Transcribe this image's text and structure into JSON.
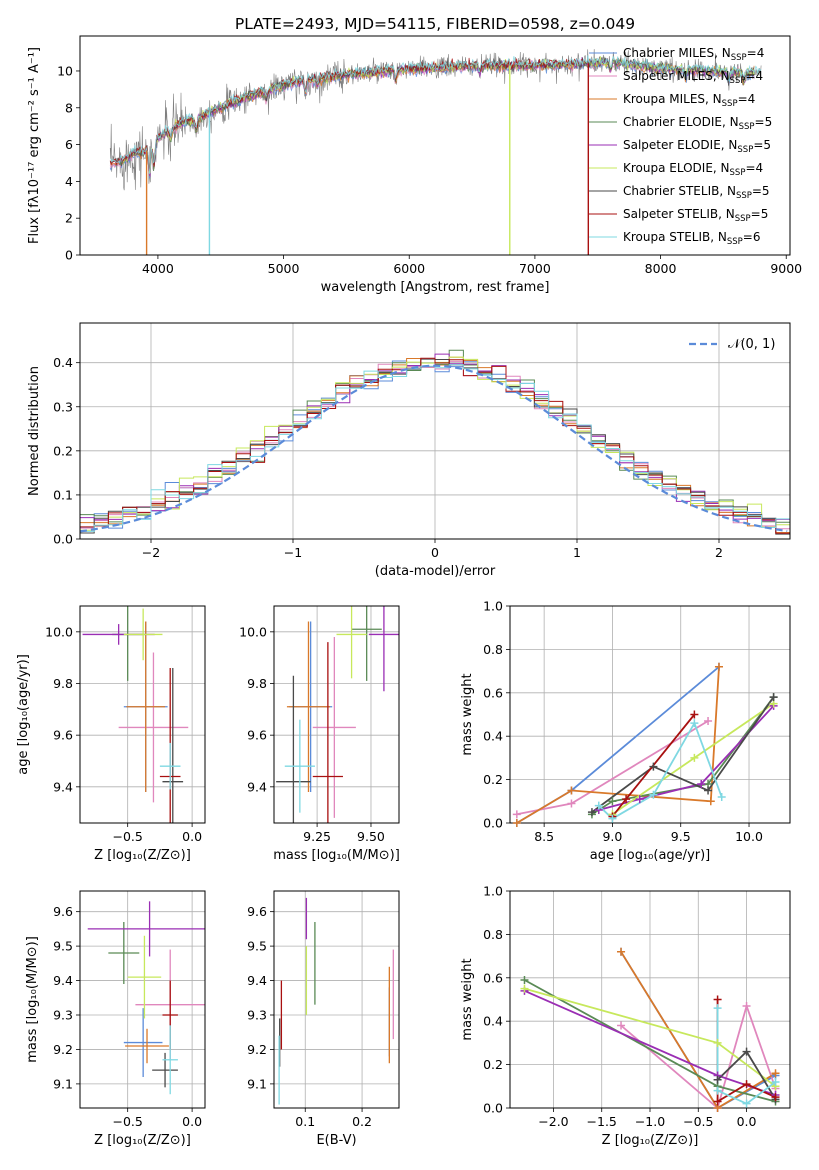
{
  "figure": {
    "title": "PLATE=2493, MJD=54115, FIBERID=0598, z=0.049"
  },
  "colors": [
    "#5b8bd9",
    "#e087bd",
    "#d9792a",
    "#5a8a55",
    "#9a2eb4",
    "#c7e85c",
    "#4a4a4a",
    "#a81010",
    "#7fd8e2"
  ],
  "chart_data": [
    {
      "id": "spectrum",
      "type": "line",
      "xlabel": "wavelength [Angstrom, rest frame]",
      "ylabel": "Flux [fλ10⁻¹⁷ erg cm⁻² s⁻¹ A⁻¹]",
      "xlim": [
        3380,
        9030
      ],
      "ylim": [
        0,
        11.9
      ],
      "xticks": [
        4000,
        5000,
        6000,
        7000,
        8000,
        9000
      ],
      "yticks": [
        0,
        2,
        4,
        6,
        8,
        10
      ],
      "legend": [
        "Chabrier MILES, N_SSP=4",
        "Salpeter MILES, N_SSP=4",
        "Kroupa MILES, N_SSP=4",
        "Chabrier ELODIE, N_SSP=5",
        "Salpeter ELODIE, N_SSP=5",
        "Kroupa ELODIE, N_SSP=4",
        "Chabrier STELIB, N_SSP=5",
        "Salpeter STELIB, N_SSP=5",
        "Kroupa STELIB, N_SSP=6"
      ],
      "legend_placement": "right",
      "data_continuum": [
        [
          3620,
          5.0
        ],
        [
          3700,
          5.0
        ],
        [
          3800,
          5.5
        ],
        [
          3900,
          5.6
        ],
        [
          4000,
          6.4
        ],
        [
          4100,
          6.8
        ],
        [
          4200,
          7.2
        ],
        [
          4300,
          7.4
        ],
        [
          4400,
          7.7
        ],
        [
          4500,
          8.0
        ],
        [
          4700,
          8.6
        ],
        [
          4900,
          9.0
        ],
        [
          5100,
          9.4
        ],
        [
          5300,
          9.6
        ],
        [
          5500,
          9.8
        ],
        [
          5700,
          9.9
        ],
        [
          6000,
          10.1
        ],
        [
          6300,
          10.2
        ],
        [
          6600,
          10.3
        ],
        [
          7000,
          10.3
        ],
        [
          7400,
          10.4
        ],
        [
          7600,
          10.5
        ],
        [
          7800,
          10.3
        ],
        [
          8100,
          10.1
        ],
        [
          8400,
          10.0
        ],
        [
          8800,
          9.9
        ]
      ]
    },
    {
      "id": "residuals",
      "type": "line",
      "xlabel": "(data-model)/error",
      "ylabel": "Normed distribution",
      "xlim": [
        -2.5,
        2.5
      ],
      "ylim": [
        0,
        0.49
      ],
      "xticks": [
        -2,
        -1,
        0,
        1,
        2
      ],
      "yticks": [
        0.0,
        0.1,
        0.2,
        0.3,
        0.4
      ],
      "legend": [
        "𝒩(0, 1)"
      ],
      "legend_placement": "top-right",
      "grid": true
    },
    {
      "id": "z-age",
      "type": "scatter",
      "xlabel": "Z [log₁₀(Z/Z⊙)]",
      "ylabel": "age  [log₁₀(age/yr)]",
      "xlim": [
        -0.87,
        0.1
      ],
      "ylim": [
        9.26,
        10.1
      ],
      "xticks": [
        -0.5,
        0.0
      ],
      "yticks": [
        9.4,
        9.6,
        9.8,
        10.0
      ],
      "grid": true,
      "points": [
        {
          "x": -0.36,
          "y": 9.71,
          "xerr": 0.17,
          "yerr": 0.33
        },
        {
          "x": -0.3,
          "y": 9.63,
          "xerr": 0.27,
          "yerr": 0.29
        },
        {
          "x": -0.36,
          "y": 9.71,
          "xerr": 0.15,
          "yerr": 0.33
        },
        {
          "x": -0.5,
          "y": 9.99,
          "xerr": 0.12,
          "yerr": 0.18
        },
        {
          "x": -0.57,
          "y": 9.99,
          "xerr": 0.28,
          "yerr": 0.04
        },
        {
          "x": -0.38,
          "y": 9.99,
          "xerr": 0.15,
          "yerr": 0.1
        },
        {
          "x": -0.15,
          "y": 9.42,
          "xerr": 0.08,
          "yerr": 0.44
        },
        {
          "x": -0.17,
          "y": 9.44,
          "xerr": 0.08,
          "yerr": 0.42
        },
        {
          "x": -0.17,
          "y": 9.48,
          "xerr": 0.08,
          "yerr": 0.09
        }
      ]
    },
    {
      "id": "mass-age",
      "type": "scatter",
      "xlabel": "mass [log₁₀(M/M⊙)]",
      "ylabel": "",
      "xlim": [
        9.05,
        9.63
      ],
      "ylim": [
        9.26,
        10.1
      ],
      "xticks": [
        9.25,
        9.5
      ],
      "yticks": [
        9.4,
        9.6,
        9.8,
        10.0
      ],
      "grid": true,
      "points": [
        {
          "x": 9.22,
          "y": 9.71,
          "xerr": 0.1,
          "yerr": 0.33
        },
        {
          "x": 9.33,
          "y": 9.63,
          "xerr": 0.1,
          "yerr": 0.35
        },
        {
          "x": 9.21,
          "y": 9.71,
          "xerr": 0.1,
          "yerr": 0.33
        },
        {
          "x": 9.48,
          "y": 10.01,
          "xerr": 0.07,
          "yerr": 0.2
        },
        {
          "x": 9.56,
          "y": 9.99,
          "xerr": 0.07,
          "yerr": 0.22
        },
        {
          "x": 9.41,
          "y": 9.99,
          "xerr": 0.07,
          "yerr": 0.17
        },
        {
          "x": 9.14,
          "y": 9.42,
          "xerr": 0.08,
          "yerr": 0.41
        },
        {
          "x": 9.3,
          "y": 9.44,
          "xerr": 0.07,
          "yerr": 0.52
        },
        {
          "x": 9.17,
          "y": 9.48,
          "xerr": 0.07,
          "yerr": 0.18
        }
      ]
    },
    {
      "id": "age-weight",
      "type": "line",
      "xlabel": "age  [log₁₀(age/yr)]",
      "ylabel": "mass weight",
      "xlim": [
        8.25,
        10.3
      ],
      "ylim": [
        0,
        1.0
      ],
      "xticks": [
        8.5,
        9.0,
        9.5,
        10.0
      ],
      "yticks": [
        0.0,
        0.2,
        0.4,
        0.6,
        0.8,
        1.0
      ],
      "grid": true,
      "series": [
        {
          "values": [
            [
              8.3,
              0.0
            ],
            [
              8.7,
              0.15
            ],
            [
              9.78,
              0.72
            ]
          ]
        },
        {
          "values": [
            [
              8.3,
              0.04
            ],
            [
              8.7,
              0.09
            ],
            [
              9.7,
              0.47
            ]
          ]
        },
        {
          "values": [
            [
              8.3,
              0.0
            ],
            [
              8.7,
              0.15
            ],
            [
              9.72,
              0.1
            ],
            [
              9.78,
              0.72
            ]
          ]
        },
        {
          "values": [
            [
              8.85,
              0.04
            ],
            [
              9.0,
              0.1
            ],
            [
              9.7,
              0.18
            ],
            [
              10.18,
              0.58
            ]
          ]
        },
        {
          "values": [
            [
              8.9,
              0.06
            ],
            [
              9.2,
              0.11
            ],
            [
              9.65,
              0.18
            ],
            [
              10.18,
              0.54
            ]
          ]
        },
        {
          "values": [
            [
              9.0,
              0.04
            ],
            [
              9.6,
              0.3
            ],
            [
              10.18,
              0.55
            ]
          ]
        },
        {
          "values": [
            [
              8.85,
              0.05
            ],
            [
              9.3,
              0.26
            ],
            [
              9.7,
              0.15
            ],
            [
              10.18,
              0.58
            ]
          ]
        },
        {
          "values": [
            [
              9.0,
              0.03
            ],
            [
              9.1,
              0.11
            ],
            [
              9.6,
              0.5
            ]
          ]
        },
        {
          "values": [
            [
              8.9,
              0.08
            ],
            [
              9.0,
              0.02
            ],
            [
              9.3,
              0.13
            ],
            [
              9.6,
              0.46
            ],
            [
              9.8,
              0.12
            ]
          ]
        }
      ]
    },
    {
      "id": "z-mass",
      "type": "scatter",
      "xlabel": "Z [log₁₀(Z/Z⊙)]",
      "ylabel": "mass [log₁₀(M/M⊙)]",
      "xlim": [
        -0.87,
        0.1
      ],
      "ylim": [
        9.03,
        9.66
      ],
      "xticks": [
        -0.5,
        0.0
      ],
      "yticks": [
        9.1,
        9.2,
        9.3,
        9.4,
        9.5,
        9.6
      ],
      "grid": true,
      "points": [
        {
          "x": -0.38,
          "y": 9.22,
          "xerr": 0.15,
          "yerr": 0.1
        },
        {
          "x": -0.17,
          "y": 9.33,
          "xerr": 0.27,
          "yerr": 0.16
        },
        {
          "x": -0.35,
          "y": 9.21,
          "xerr": 0.17,
          "yerr": 0.05
        },
        {
          "x": -0.53,
          "y": 9.48,
          "xerr": 0.12,
          "yerr": 0.09
        },
        {
          "x": -0.33,
          "y": 9.55,
          "xerr": 0.48,
          "yerr": 0.08
        },
        {
          "x": -0.37,
          "y": 9.41,
          "xerr": 0.13,
          "yerr": 0.12
        },
        {
          "x": -0.21,
          "y": 9.14,
          "xerr": 0.1,
          "yerr": 0.05
        },
        {
          "x": -0.17,
          "y": 9.3,
          "xerr": 0.06,
          "yerr": 0.1
        },
        {
          "x": -0.17,
          "y": 9.17,
          "xerr": 0.06,
          "yerr": 0.1
        }
      ]
    },
    {
      "id": "ebv-mass",
      "type": "scatter",
      "xlabel": "E(B-V)",
      "ylabel": "",
      "xlim": [
        0.045,
        0.265
      ],
      "ylim": [
        9.03,
        9.66
      ],
      "xticks": [
        0.1,
        0.2
      ],
      "yticks": [
        9.1,
        9.2,
        9.3,
        9.4,
        9.5,
        9.6
      ],
      "grid": true,
      "points": [
        {
          "x": 0.248,
          "y": 9.28,
          "xerr": 0,
          "yerr": 0.1
        },
        {
          "x": 0.255,
          "y": 9.36,
          "xerr": 0,
          "yerr": 0.13
        },
        {
          "x": 0.248,
          "y": 9.3,
          "xerr": 0,
          "yerr": 0.14
        },
        {
          "x": 0.117,
          "y": 9.45,
          "xerr": 0,
          "yerr": 0.12
        },
        {
          "x": 0.102,
          "y": 9.58,
          "xerr": 0,
          "yerr": 0.06
        },
        {
          "x": 0.102,
          "y": 9.4,
          "xerr": 0,
          "yerr": 0.1
        },
        {
          "x": 0.055,
          "y": 9.22,
          "xerr": 0,
          "yerr": 0.07
        },
        {
          "x": 0.058,
          "y": 9.3,
          "xerr": 0,
          "yerr": 0.1
        },
        {
          "x": 0.054,
          "y": 9.14,
          "xerr": 0,
          "yerr": 0.1
        }
      ]
    },
    {
      "id": "z-weight",
      "type": "line",
      "xlabel": "Z [log₁₀(Z/Z⊙)]",
      "ylabel": "mass weight",
      "xlim": [
        -2.45,
        0.45
      ],
      "ylim": [
        0,
        1.0
      ],
      "xticks": [
        -2.0,
        -1.5,
        -1.0,
        -0.5,
        0.0
      ],
      "yticks": [
        0.0,
        0.2,
        0.4,
        0.6,
        0.8,
        1.0
      ],
      "grid": true,
      "series": [
        {
          "values": [
            [
              -1.3,
              0.72
            ],
            [
              -0.3,
              0.0
            ],
            [
              0.3,
              0.15
            ]
          ]
        },
        {
          "values": [
            [
              -1.3,
              0.38
            ],
            [
              -0.3,
              0.0
            ],
            [
              0.0,
              0.47
            ],
            [
              0.3,
              0.09
            ]
          ]
        },
        {
          "values": [
            [
              -1.3,
              0.72
            ],
            [
              -0.3,
              0.0
            ],
            [
              0.3,
              0.16
            ]
          ]
        },
        {
          "values": [
            [
              -2.3,
              0.59
            ],
            [
              -0.3,
              0.1
            ],
            [
              0.3,
              0.03
            ]
          ]
        },
        {
          "values": [
            [
              -2.3,
              0.54
            ],
            [
              -0.3,
              0.15
            ],
            [
              0.3,
              0.06
            ]
          ]
        },
        {
          "values": [
            [
              -2.3,
              0.55
            ],
            [
              -0.3,
              0.3
            ],
            [
              0.3,
              0.1
            ]
          ]
        },
        {
          "values": [
            [
              -0.3,
              0.13
            ],
            [
              0.0,
              0.26
            ],
            [
              0.3,
              0.04
            ]
          ]
        },
        {
          "values": [
            [
              -0.3,
              0.5
            ],
            [
              -0.3,
              0.03
            ],
            [
              0.0,
              0.11
            ],
            [
              0.3,
              0.05
            ]
          ]
        },
        {
          "values": [
            [
              -0.3,
              0.46
            ],
            [
              -0.3,
              0.08
            ],
            [
              0.0,
              0.02
            ],
            [
              0.3,
              0.12
            ]
          ]
        }
      ]
    }
  ]
}
